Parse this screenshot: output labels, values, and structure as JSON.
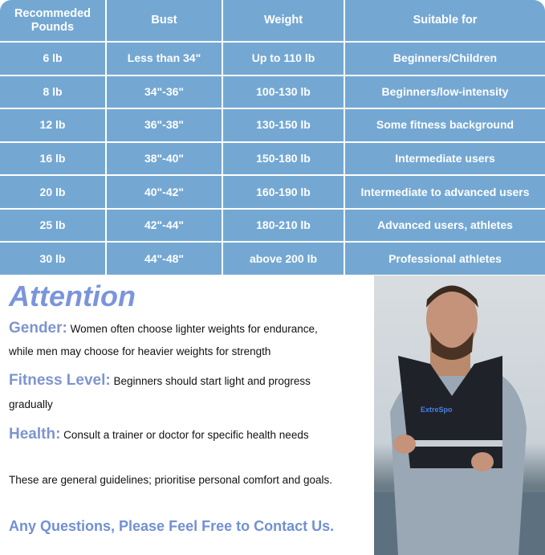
{
  "table": {
    "headers": [
      "Recommeded Pounds",
      "Bust",
      "Weight",
      "Suitable for"
    ],
    "rows": [
      [
        "6 lb",
        "Less than 34\"",
        "Up to 110 lb",
        "Beginners/Children"
      ],
      [
        "8 lb",
        "34\"-36\"",
        "100-130 lb",
        "Beginners/low-intensity"
      ],
      [
        "12 lb",
        "36\"-38\"",
        "130-150 lb",
        "Some fitness background"
      ],
      [
        "16 lb",
        "38\"-40\"",
        "150-180 lb",
        "Intermediate users"
      ],
      [
        "20 lb",
        "40\"-42\"",
        "160-190 lb",
        "Intermediate to advanced users"
      ],
      [
        "25 lb",
        "42\"-44\"",
        "180-210 lb",
        "Advanced users, athletes"
      ],
      [
        "30 lb",
        "44\"-48\"",
        "above 200 lb",
        "Professional athletes"
      ]
    ]
  },
  "attention": {
    "title": "Attention",
    "gender_label": "Gender:",
    "gender_text": "Women often choose lighter weights for endurance,",
    "gender_text2": "while men may choose for heavier weights for strength",
    "fitness_label": "Fitness Level:",
    "fitness_text": "Beginners should start light and progress",
    "fitness_text2": "gradually",
    "health_label": "Health:",
    "health_text": "Consult a trainer or doctor for specific health needs",
    "note": "These are general guidelines; prioritise personal comfort and goals.",
    "contact": "Any Questions, Please Feel Free to Contact Us."
  },
  "photo": {
    "vest_brand": "ExtreSpo"
  }
}
